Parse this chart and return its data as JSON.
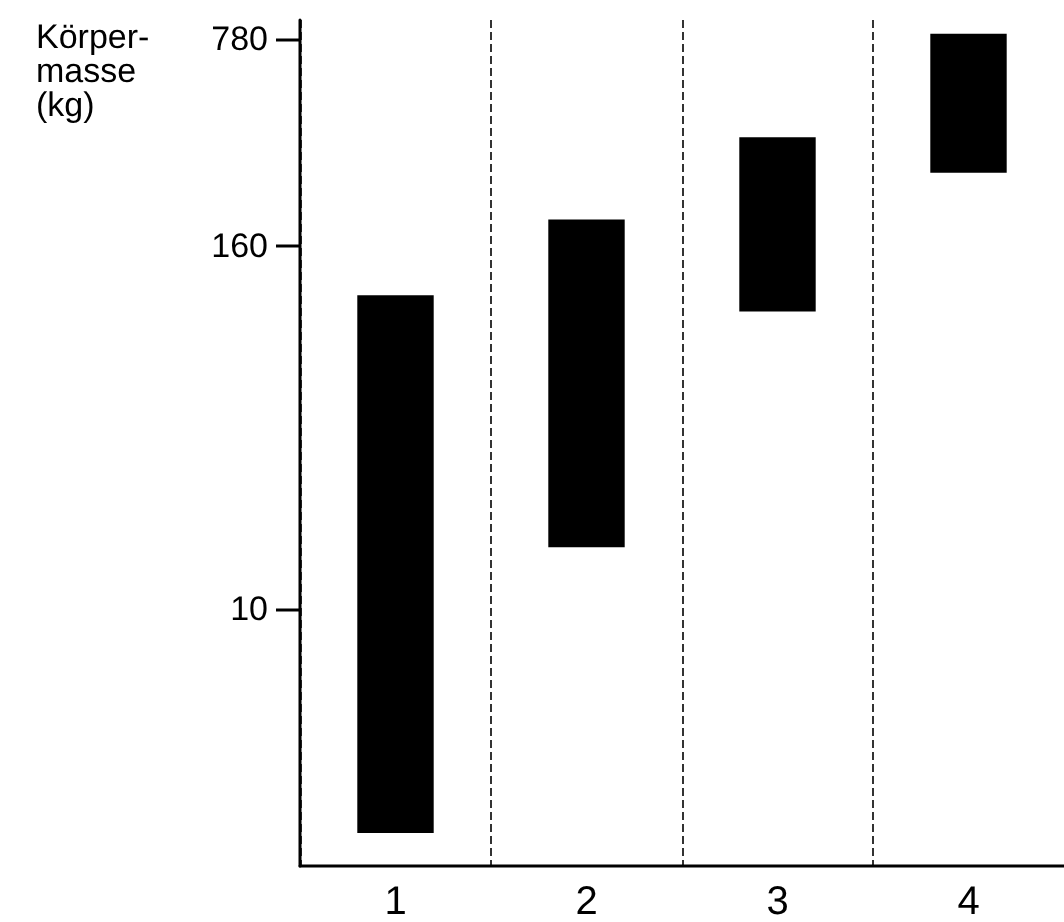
{
  "chart_data": {
    "type": "bar",
    "ylabel": "Körper-\nmasse\n(kg)",
    "categories": [
      "1",
      "2",
      "3",
      "4"
    ],
    "base": [
      1.8,
      16,
      97,
      280
    ],
    "values": [
      108,
      180,
      270,
      530
    ],
    "color": "#000000",
    "log": "y",
    "ylim": [
      1.4,
      900
    ],
    "yticks": [
      10,
      160,
      780
    ],
    "grid": "x"
  }
}
